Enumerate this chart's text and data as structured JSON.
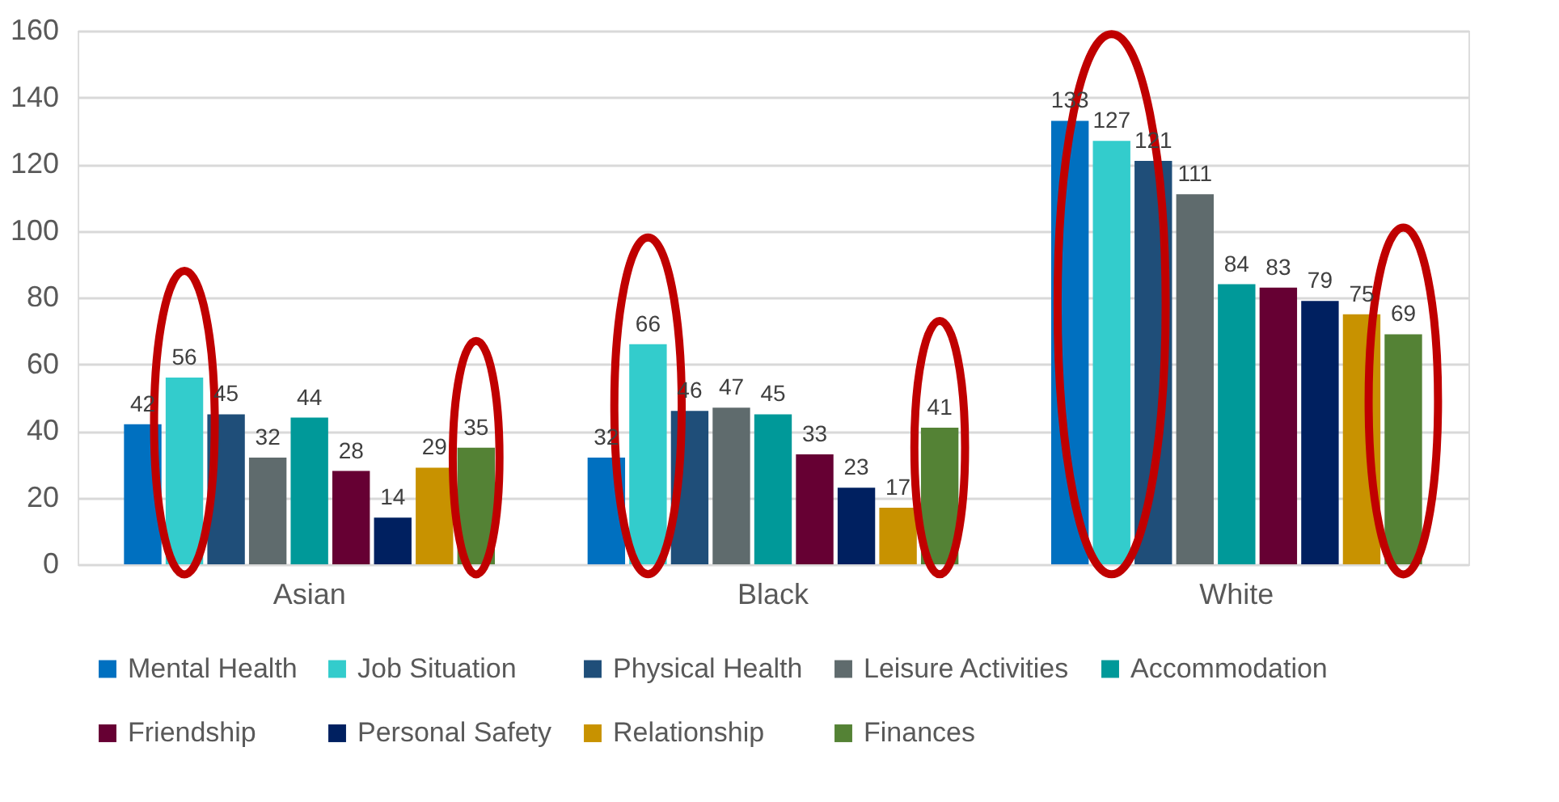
{
  "chart_data": {
    "type": "bar",
    "categories": [
      "Asian",
      "Black",
      "White"
    ],
    "series": [
      {
        "name": "Mental Health",
        "color": "#0070c0",
        "values": [
          42,
          32,
          133
        ]
      },
      {
        "name": "Job Situation",
        "color": "#33cccc",
        "values": [
          56,
          66,
          127
        ]
      },
      {
        "name": "Physical Health",
        "color": "#1f4e79",
        "values": [
          45,
          46,
          121
        ]
      },
      {
        "name": "Leisure Activities",
        "color": "#5f6b6d",
        "values": [
          32,
          47,
          111
        ]
      },
      {
        "name": "Accommodation",
        "color": "#009999",
        "values": [
          44,
          45,
          84
        ]
      },
      {
        "name": "Friendship",
        "color": "#660033",
        "values": [
          28,
          33,
          83
        ]
      },
      {
        "name": "Personal Safety",
        "color": "#002060",
        "values": [
          14,
          23,
          79
        ]
      },
      {
        "name": "Relationship",
        "color": "#c89200",
        "values": [
          29,
          17,
          75
        ]
      },
      {
        "name": "Finances",
        "color": "#548235",
        "values": [
          35,
          41,
          69
        ]
      }
    ],
    "ylim": [
      0,
      160
    ],
    "yticks": [
      0,
      20,
      40,
      60,
      80,
      100,
      120,
      140,
      160
    ],
    "grid": "y",
    "legend": "bottom",
    "data_labels": true
  }
}
